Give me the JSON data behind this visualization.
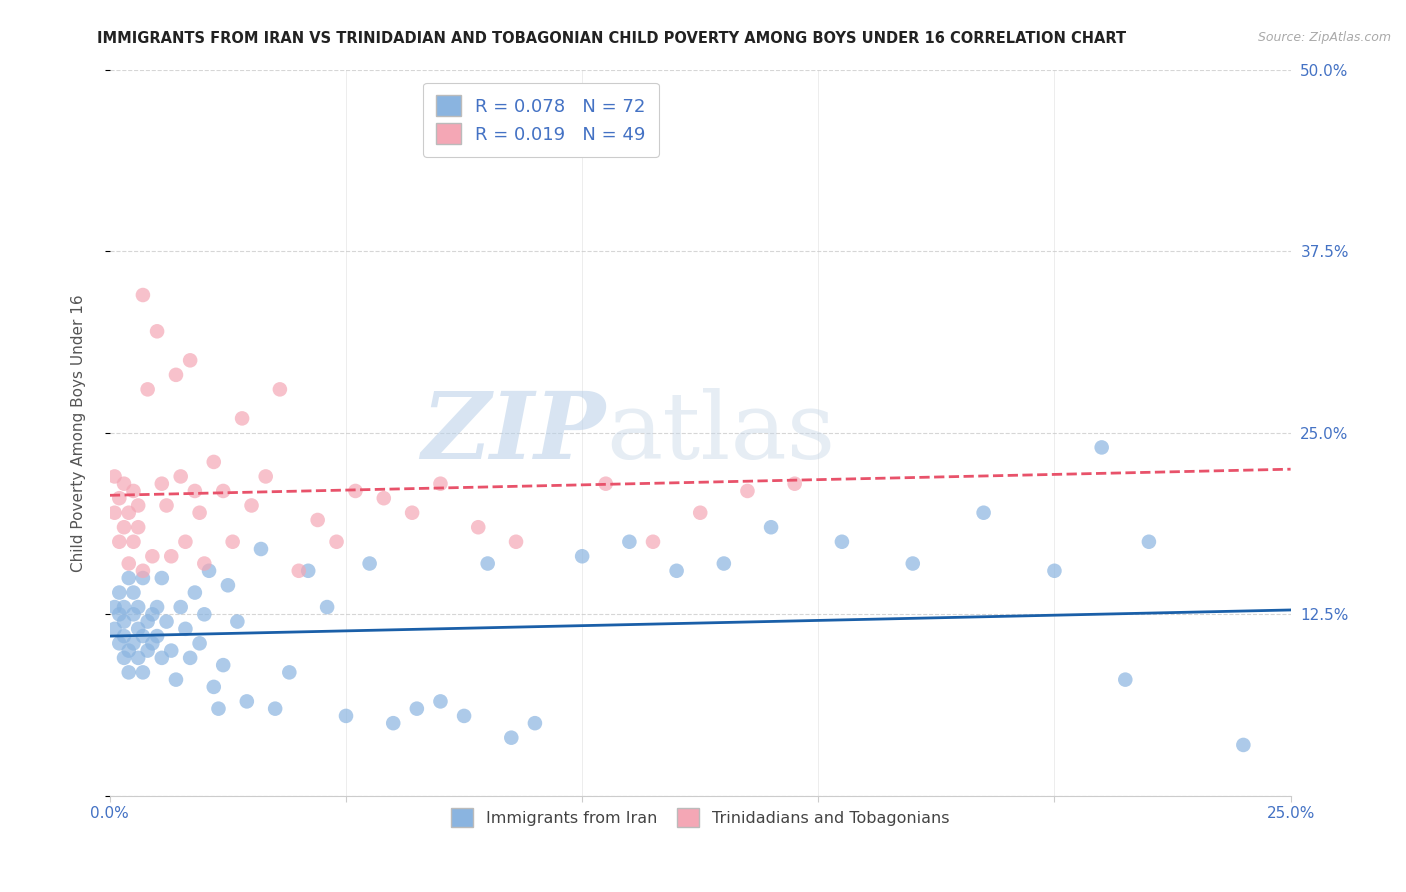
{
  "title": "IMMIGRANTS FROM IRAN VS TRINIDADIAN AND TOBAGONIAN CHILD POVERTY AMONG BOYS UNDER 16 CORRELATION CHART",
  "source": "Source: ZipAtlas.com",
  "ylabel": "Child Poverty Among Boys Under 16",
  "xlim": [
    0.0,
    0.25
  ],
  "ylim": [
    0.0,
    0.5
  ],
  "xtick_positions": [
    0.0,
    0.05,
    0.1,
    0.15,
    0.2,
    0.25
  ],
  "xticklabels": [
    "0.0%",
    "",
    "",
    "",
    "",
    "25.0%"
  ],
  "ytick_positions": [
    0.0,
    0.125,
    0.25,
    0.375,
    0.5
  ],
  "yticklabels": [
    "",
    "12.5%",
    "25.0%",
    "37.5%",
    "50.0%"
  ],
  "legend_label1": "Immigrants from Iran",
  "legend_label2": "Trinidadians and Tobagonians",
  "R1": "0.078",
  "N1": "72",
  "R2": "0.019",
  "N2": "49",
  "color1": "#8ab4e0",
  "color2": "#f4a7b5",
  "line_color1": "#1a5fa8",
  "line_color2": "#e8526a",
  "watermark_zip": "ZIP",
  "watermark_atlas": "atlas",
  "blue_scatter_x": [
    0.001,
    0.001,
    0.002,
    0.002,
    0.002,
    0.003,
    0.003,
    0.003,
    0.003,
    0.004,
    0.004,
    0.004,
    0.005,
    0.005,
    0.005,
    0.006,
    0.006,
    0.006,
    0.007,
    0.007,
    0.007,
    0.008,
    0.008,
    0.009,
    0.009,
    0.01,
    0.01,
    0.011,
    0.011,
    0.012,
    0.013,
    0.014,
    0.015,
    0.016,
    0.017,
    0.018,
    0.019,
    0.02,
    0.021,
    0.022,
    0.023,
    0.024,
    0.025,
    0.027,
    0.029,
    0.032,
    0.035,
    0.038,
    0.042,
    0.046,
    0.05,
    0.055,
    0.06,
    0.065,
    0.07,
    0.075,
    0.08,
    0.085,
    0.09,
    0.1,
    0.11,
    0.12,
    0.13,
    0.14,
    0.155,
    0.17,
    0.185,
    0.2,
    0.21,
    0.215,
    0.22,
    0.24
  ],
  "blue_scatter_y": [
    0.13,
    0.115,
    0.125,
    0.105,
    0.14,
    0.12,
    0.095,
    0.13,
    0.11,
    0.085,
    0.15,
    0.1,
    0.125,
    0.105,
    0.14,
    0.115,
    0.095,
    0.13,
    0.11,
    0.085,
    0.15,
    0.12,
    0.1,
    0.125,
    0.105,
    0.13,
    0.11,
    0.095,
    0.15,
    0.12,
    0.1,
    0.08,
    0.13,
    0.115,
    0.095,
    0.14,
    0.105,
    0.125,
    0.155,
    0.075,
    0.06,
    0.09,
    0.145,
    0.12,
    0.065,
    0.17,
    0.06,
    0.085,
    0.155,
    0.13,
    0.055,
    0.16,
    0.05,
    0.06,
    0.065,
    0.055,
    0.16,
    0.04,
    0.05,
    0.165,
    0.175,
    0.155,
    0.16,
    0.185,
    0.175,
    0.16,
    0.195,
    0.155,
    0.24,
    0.08,
    0.175,
    0.035
  ],
  "pink_scatter_x": [
    0.001,
    0.001,
    0.002,
    0.002,
    0.003,
    0.003,
    0.004,
    0.004,
    0.005,
    0.005,
    0.006,
    0.006,
    0.007,
    0.007,
    0.008,
    0.009,
    0.01,
    0.011,
    0.012,
    0.013,
    0.014,
    0.015,
    0.016,
    0.017,
    0.018,
    0.019,
    0.02,
    0.022,
    0.024,
    0.026,
    0.028,
    0.03,
    0.033,
    0.036,
    0.04,
    0.044,
    0.048,
    0.052,
    0.058,
    0.064,
    0.07,
    0.078,
    0.086,
    0.095,
    0.105,
    0.115,
    0.125,
    0.135,
    0.145
  ],
  "pink_scatter_y": [
    0.22,
    0.195,
    0.175,
    0.205,
    0.185,
    0.215,
    0.16,
    0.195,
    0.21,
    0.175,
    0.2,
    0.185,
    0.345,
    0.155,
    0.28,
    0.165,
    0.32,
    0.215,
    0.2,
    0.165,
    0.29,
    0.22,
    0.175,
    0.3,
    0.21,
    0.195,
    0.16,
    0.23,
    0.21,
    0.175,
    0.26,
    0.2,
    0.22,
    0.28,
    0.155,
    0.19,
    0.175,
    0.21,
    0.205,
    0.195,
    0.215,
    0.185,
    0.175,
    0.47,
    0.215,
    0.175,
    0.195,
    0.21,
    0.215
  ],
  "blue_line_x0": 0.0,
  "blue_line_y0": 0.11,
  "blue_line_x1": 0.25,
  "blue_line_y1": 0.128,
  "pink_line_x0": 0.0,
  "pink_line_y0": 0.207,
  "pink_line_x1": 0.25,
  "pink_line_y1": 0.225,
  "background_color": "#ffffff",
  "grid_color": "#cccccc",
  "title_color": "#222222",
  "title_fontsize": 10.5,
  "tick_color": "#4472c4",
  "ylabel_color": "#555555"
}
